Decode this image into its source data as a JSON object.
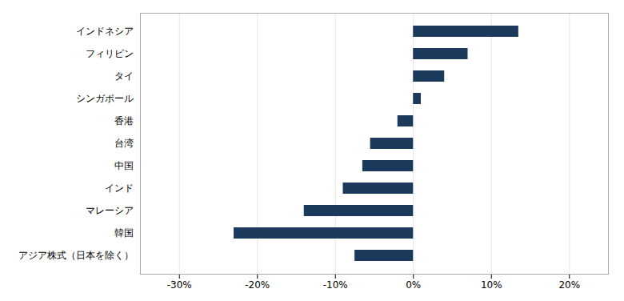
{
  "chart_data": {
    "type": "bar",
    "orientation": "horizontal",
    "categories": [
      "インドネシア",
      "フィリピン",
      "タイ",
      "シンガポール",
      "香港",
      "台湾",
      "中国",
      "インド",
      "マレーシア",
      "韓国",
      "アジア株式（日本を除く）"
    ],
    "values": [
      13.5,
      7.0,
      4.0,
      1.0,
      -2.0,
      -5.5,
      -6.5,
      -9.0,
      -14.0,
      -23.0,
      -7.5
    ],
    "color": "#1B3A5C",
    "xlim": [
      -35,
      25
    ],
    "xticks": [
      {
        "value": -30,
        "label": "-30%"
      },
      {
        "value": -20,
        "label": "-20%"
      },
      {
        "value": -10,
        "label": "-10%"
      },
      {
        "value": 0,
        "label": "0%"
      },
      {
        "value": 10,
        "label": "10%"
      },
      {
        "value": 20,
        "label": "20%"
      }
    ],
    "grid": true
  }
}
